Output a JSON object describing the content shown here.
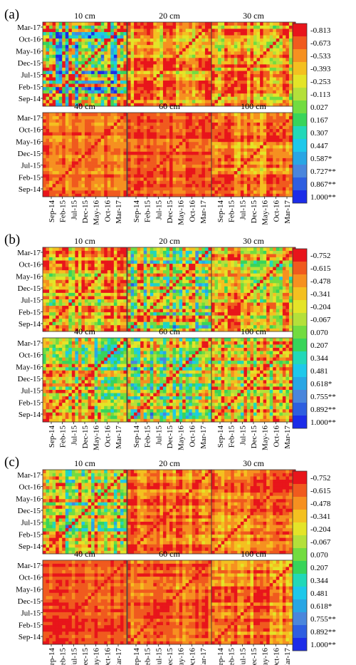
{
  "chart_data": {
    "type": "heatmap",
    "colors": [
      "#e8151b",
      "#f05a1e",
      "#f69020",
      "#f4c020",
      "#e4e428",
      "#b4e03a",
      "#72dc40",
      "#38d45a",
      "#22d8b8",
      "#1ec8ea",
      "#29a6e4",
      "#4a86dc",
      "#2e5ee0",
      "#1c2ce8"
    ],
    "time_ticks": [
      "Sep-14",
      "Feb-15",
      "Jul-15",
      "Dec-15",
      "May-16",
      "Oct-16",
      "Mar-17"
    ],
    "panels": [
      {
        "label": "(a)",
        "subplots": [
          "10 cm",
          "20 cm",
          "30 cm",
          "40 cm",
          "60 cm",
          "100 cm"
        ],
        "legend": [
          "-0.813",
          "-0.673",
          "-0.533",
          "-0.393",
          "-0.253",
          "-0.113",
          "0.027",
          "0.167",
          "0.307",
          "0.447",
          "0.587*",
          "0.727**",
          "0.867**",
          "1.000**"
        ],
        "show_x_ticks": true
      },
      {
        "label": "(b)",
        "subplots": [
          "10 cm",
          "20 cm",
          "30 cm",
          "40 cm",
          "60 cm",
          "100 cm"
        ],
        "legend": [
          "-0.752",
          "-0.615",
          "-0.478",
          "-0.341",
          "-0.204",
          "-0.067",
          "0.070",
          "0.207",
          "0.344",
          "0.481",
          "0.618*",
          "0.755**",
          "0.892**",
          "1.000**"
        ],
        "show_x_ticks": true
      },
      {
        "label": "(c)",
        "subplots": [
          "10 cm",
          "20 cm",
          "30 cm",
          "40 cm",
          "60 cm",
          "100 cm"
        ],
        "legend": [
          "-0.752",
          "-0.615",
          "-0.478",
          "-0.341",
          "-0.204",
          "-0.067",
          "0.070",
          "0.207",
          "0.344",
          "0.481",
          "0.618*",
          "0.755**",
          "0.892**",
          "1.000**"
        ],
        "show_x_ticks": true
      }
    ]
  }
}
